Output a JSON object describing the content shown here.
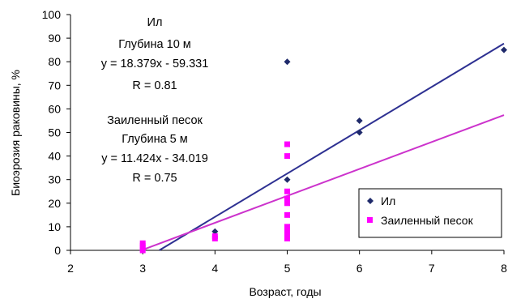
{
  "chart_data": {
    "type": "scatter",
    "xlabel": "Возраст, годы",
    "ylabel": "Биоэрозия раковины, %",
    "xlim": [
      2,
      8
    ],
    "ylim": [
      0,
      100
    ],
    "xticks": [
      "2",
      "3",
      "4",
      "5",
      "6",
      "7",
      "8"
    ],
    "yticks": [
      "0",
      "10",
      "20",
      "30",
      "40",
      "50",
      "60",
      "70",
      "80",
      "90",
      "100"
    ],
    "grid": false,
    "legend_position": "bottom-right",
    "series": [
      {
        "name": "Ил",
        "marker": "diamond",
        "color": "#1f2a6b",
        "line_color": "#2e3192",
        "points": [
          [
            3,
            0
          ],
          [
            4,
            8
          ],
          [
            5,
            30
          ],
          [
            5,
            80
          ],
          [
            6,
            50
          ],
          [
            6,
            55
          ],
          [
            8,
            85
          ]
        ],
        "trendline": {
          "slope": 18.379,
          "intercept": -59.331,
          "x_range": [
            3.23,
            8
          ]
        }
      },
      {
        "name": "Заиленный песок",
        "marker": "square",
        "color": "#ff00ff",
        "line_color": "#cc33cc",
        "points": [
          [
            3,
            0
          ],
          [
            3,
            1
          ],
          [
            3,
            2
          ],
          [
            3,
            3
          ],
          [
            4,
            5
          ],
          [
            4,
            6
          ],
          [
            5,
            5
          ],
          [
            5,
            7
          ],
          [
            5,
            8
          ],
          [
            5,
            10
          ],
          [
            5,
            15
          ],
          [
            5,
            20
          ],
          [
            5,
            22
          ],
          [
            5,
            25
          ],
          [
            5,
            40
          ],
          [
            5,
            45
          ]
        ],
        "trendline": {
          "slope": 11.424,
          "intercept": -34.019,
          "x_range": [
            3,
            8
          ]
        }
      }
    ],
    "annotations": [
      {
        "lines": [
          "Ил",
          "Глубина 10 м",
          "y = 18.379x - 59.331",
          "R = 0.81"
        ]
      },
      {
        "lines": [
          "Заиленный песок",
          "Глубина 5 м",
          "y = 11.424x - 34.019",
          "R = 0.75"
        ]
      }
    ]
  }
}
